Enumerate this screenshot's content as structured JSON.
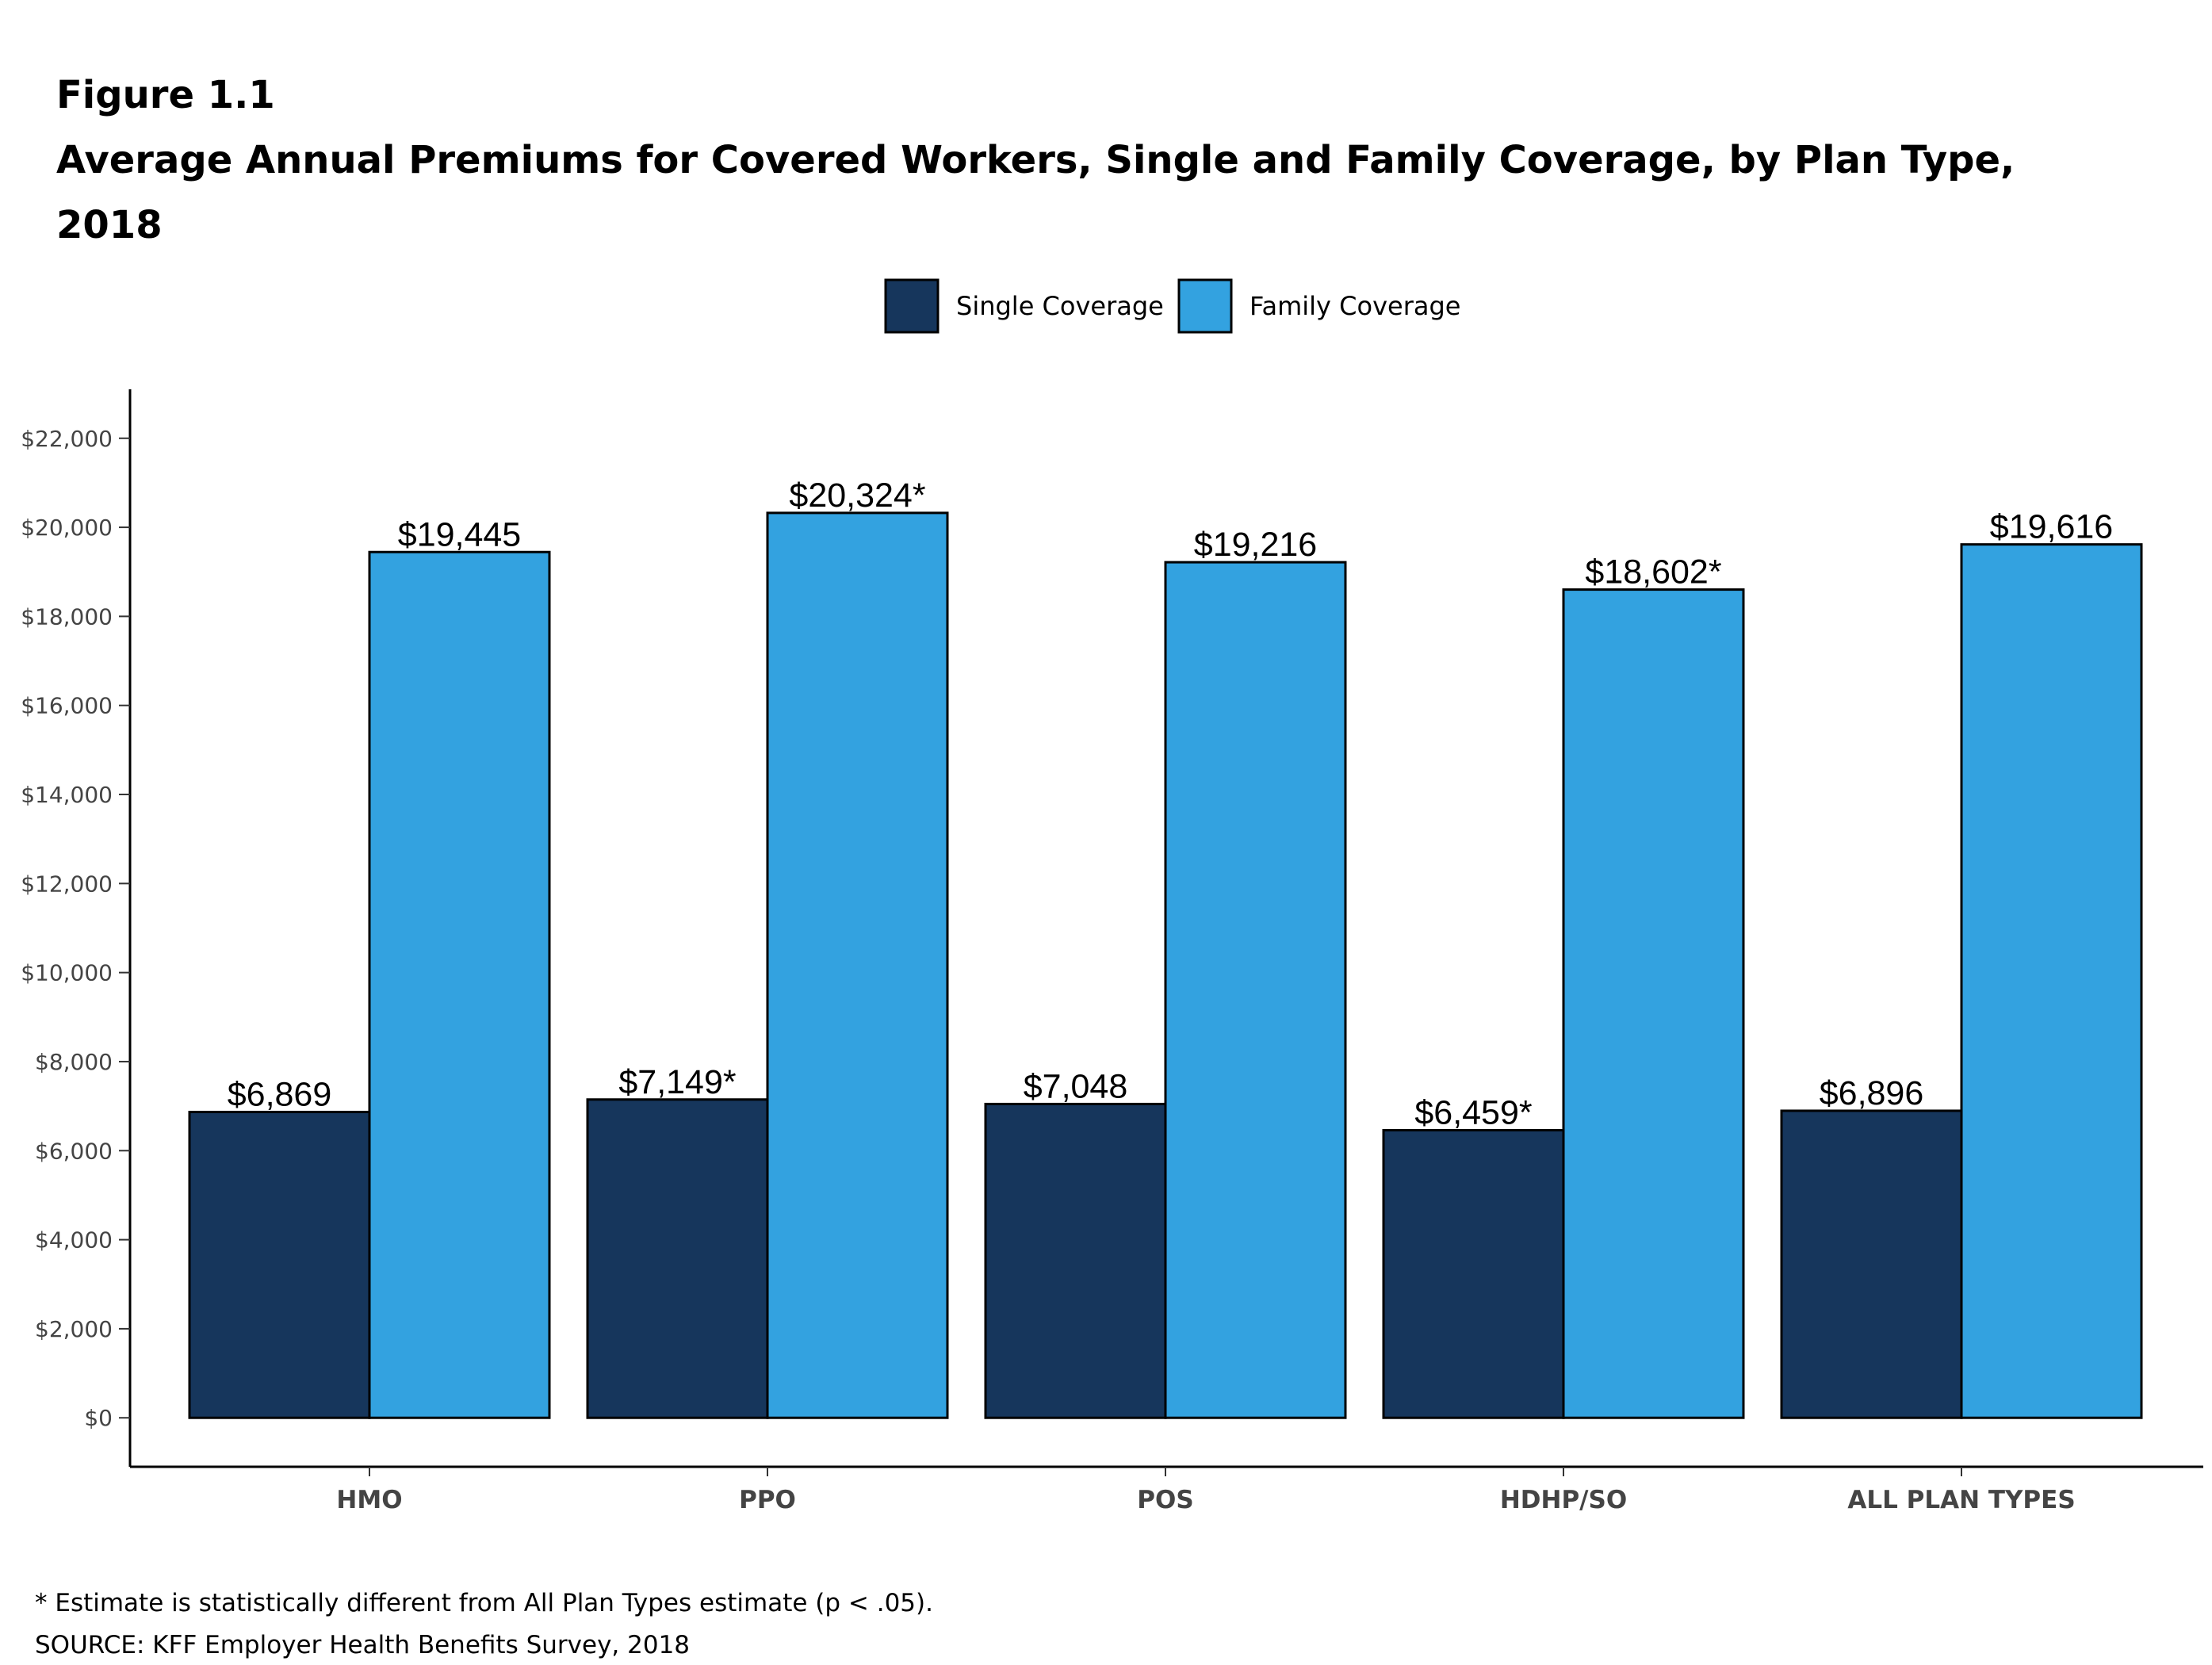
{
  "chart_data": {
    "type": "bar",
    "figure_label": "Figure 1.1",
    "title": "Average Annual Premiums for Covered Workers, Single and Family Coverage, by Plan Type,",
    "title_year": "2018",
    "categories": [
      "HMO",
      "PPO",
      "POS",
      "HDHP/SO",
      "ALL PLAN TYPES"
    ],
    "series": [
      {
        "name": "Single Coverage",
        "color": "#16365c",
        "values": [
          6869,
          7149,
          7048,
          6459,
          6896
        ],
        "value_labels": [
          "$6,869",
          "$7,149*",
          "$7,048",
          "$6,459*",
          "$6,896"
        ]
      },
      {
        "name": "Family Coverage",
        "color": "#33a2e0",
        "values": [
          19445,
          20324,
          19216,
          18602,
          19616
        ],
        "value_labels": [
          "$19,445",
          "$20,324*",
          "$19,216",
          "$18,602*",
          "$19,616"
        ]
      }
    ],
    "ylim": [
      -1100,
      23100
    ],
    "yticks": [
      {
        "value": 0,
        "label": "$0"
      },
      {
        "value": 2000,
        "label": "$2,000"
      },
      {
        "value": 4000,
        "label": "$4,000"
      },
      {
        "value": 6000,
        "label": "$6,000"
      },
      {
        "value": 8000,
        "label": "$8,000"
      },
      {
        "value": 10000,
        "label": "$10,000"
      },
      {
        "value": 12000,
        "label": "$12,000"
      },
      {
        "value": 14000,
        "label": "$14,000"
      },
      {
        "value": 16000,
        "label": "$16,000"
      },
      {
        "value": 18000,
        "label": "$18,000"
      },
      {
        "value": 20000,
        "label": "$20,000"
      },
      {
        "value": 22000,
        "label": "$22,000"
      }
    ],
    "grid": false,
    "legend_position": "top",
    "footnote": "* Estimate is statistically different from All Plan Types estimate (p < .05).",
    "source": "SOURCE: KFF Employer Health Benefits Survey, 2018"
  }
}
